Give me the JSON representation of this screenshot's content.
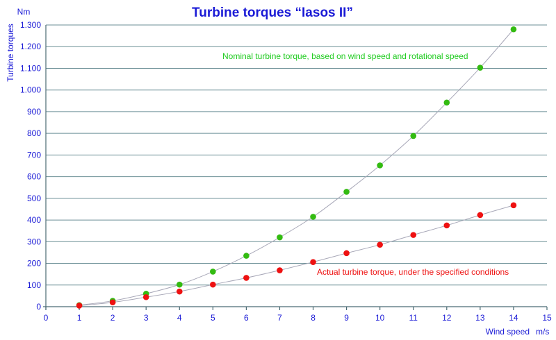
{
  "chart_data": {
    "type": "scatter",
    "title": "Turbine torques “Iasos II”",
    "ylabel": "Turbine torques",
    "yunit": "Nm",
    "xlabel": "Wind speed",
    "xunit": "m/s",
    "xlim": [
      0,
      15
    ],
    "ylim": [
      0,
      1300
    ],
    "xticks": [
      0,
      1,
      2,
      3,
      4,
      5,
      6,
      7,
      8,
      9,
      10,
      11,
      12,
      13,
      14,
      15
    ],
    "yticks": [
      0,
      100,
      200,
      300,
      400,
      500,
      600,
      700,
      800,
      900,
      1000,
      1100,
      1200,
      1300
    ],
    "ytick_labels": [
      "0",
      "100",
      "200",
      "300",
      "400",
      "500",
      "600",
      "700",
      "800",
      "900",
      "1.000",
      "1.100",
      "1.200",
      "1.300"
    ],
    "grid": true,
    "series": [
      {
        "name": "Nominal turbine torque, based on wind speed and rotational speed",
        "color": "#33bb11",
        "label_color": "#22cc22",
        "x": [
          1,
          2,
          3,
          4,
          5,
          6,
          7,
          8,
          9,
          10,
          11,
          12,
          13,
          14
        ],
        "values": [
          7,
          27,
          60,
          102,
          162,
          235,
          320,
          415,
          530,
          652,
          788,
          942,
          1103,
          1280
        ]
      },
      {
        "name": "Actual turbine torque, under the specified conditions",
        "color": "#ee1111",
        "label_color": "#ee1111",
        "x": [
          1,
          2,
          3,
          4,
          5,
          6,
          7,
          8,
          9,
          10,
          11,
          12,
          13,
          14
        ],
        "values": [
          5,
          20,
          44,
          70,
          102,
          133,
          168,
          206,
          247,
          286,
          331,
          375,
          423,
          468
        ]
      }
    ]
  }
}
